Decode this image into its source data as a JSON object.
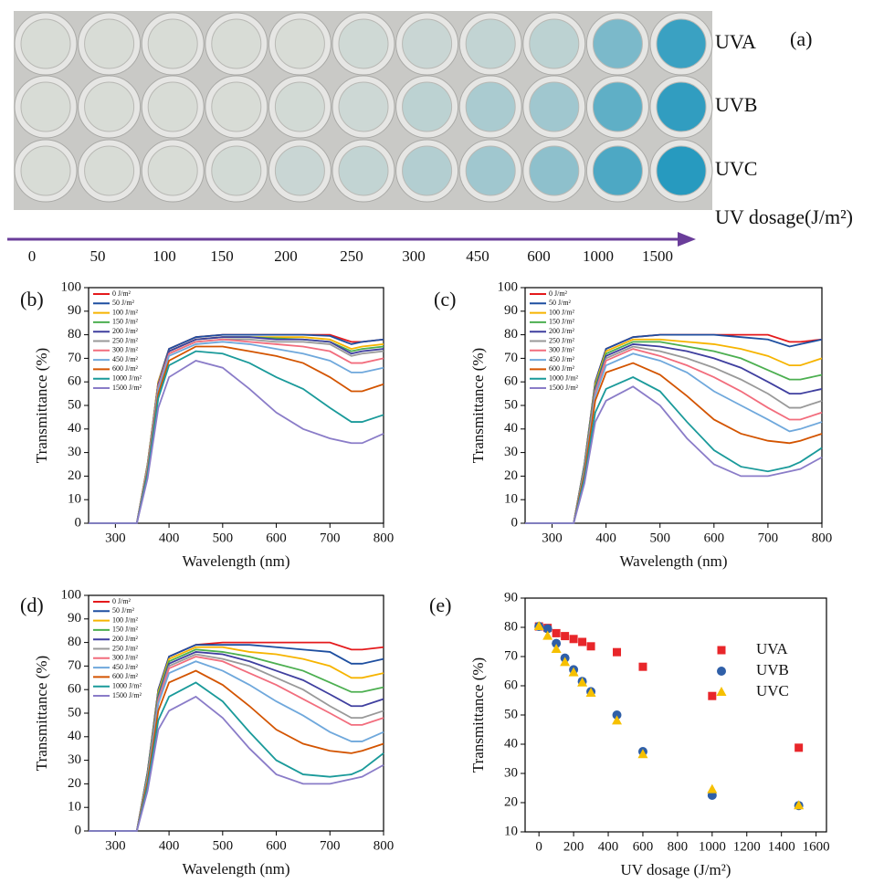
{
  "photo_panel": {
    "label": "(a)",
    "rows": [
      "UVA",
      "UVB",
      "UVC"
    ],
    "axis_title": "UV dosage(J/m²)",
    "dosages": [
      0,
      50,
      100,
      150,
      200,
      250,
      300,
      450,
      600,
      1000,
      1500
    ]
  },
  "chart_data": [
    {
      "type": "line",
      "panel_label": "(b)",
      "x_label": "Wavelength (nm)",
      "y_label": "Transmittance (%)",
      "legend": "upper left",
      "xlim": [
        250,
        800
      ],
      "ylim": [
        0,
        100
      ],
      "xticks": [
        300,
        400,
        500,
        600,
        700,
        800
      ],
      "yticks": [
        0,
        10,
        20,
        30,
        40,
        50,
        60,
        70,
        80,
        90,
        100
      ],
      "x": [
        250,
        300,
        340,
        360,
        380,
        400,
        450,
        500,
        550,
        600,
        650,
        700,
        740,
        760,
        800
      ],
      "series": [
        {
          "name": "0 J/m²",
          "color": "#e41a1c",
          "values": [
            0,
            0,
            0,
            25,
            60,
            74,
            79,
            80,
            80,
            80,
            80,
            80,
            77,
            77,
            78
          ]
        },
        {
          "name": "50 J/m²",
          "color": "#1e4fa0",
          "values": [
            0,
            0,
            0,
            25,
            60,
            74,
            79,
            80,
            80,
            80,
            80,
            79.5,
            76,
            77,
            78
          ]
        },
        {
          "name": "100 J/m²",
          "color": "#f6b400",
          "values": [
            0,
            0,
            0,
            25,
            60,
            73,
            78,
            79,
            79,
            79,
            79,
            78,
            74,
            75,
            76
          ]
        },
        {
          "name": "150 J/m²",
          "color": "#4caf50",
          "values": [
            0,
            0,
            0,
            25,
            59,
            73,
            78,
            79,
            79,
            78.5,
            78,
            77,
            73,
            74,
            75
          ]
        },
        {
          "name": "200 J/m²",
          "color": "#3f3f9f",
          "values": [
            0,
            0,
            0,
            24,
            59,
            73,
            78,
            79,
            79,
            78,
            78,
            77,
            72,
            73,
            74
          ]
        },
        {
          "name": "250 J/m²",
          "color": "#999999",
          "values": [
            0,
            0,
            0,
            24,
            58,
            72,
            77,
            78,
            78,
            77,
            77,
            76,
            71,
            72,
            73
          ]
        },
        {
          "name": "300 J/m²",
          "color": "#f26d7d",
          "values": [
            0,
            0,
            0,
            24,
            58,
            72,
            77,
            78,
            77,
            76,
            75,
            73,
            68,
            68,
            70
          ]
        },
        {
          "name": "450 J/m²",
          "color": "#6fa8dc",
          "values": [
            0,
            0,
            0,
            23,
            57,
            71,
            76,
            77,
            76,
            74,
            72,
            69,
            64,
            64,
            66
          ]
        },
        {
          "name": "600 J/m²",
          "color": "#d35400",
          "values": [
            0,
            0,
            0,
            22,
            55,
            69,
            75,
            75,
            73,
            71,
            68,
            62,
            56,
            56,
            59
          ]
        },
        {
          "name": "1000 J/m²",
          "color": "#1a9a9a",
          "values": [
            0,
            0,
            0,
            21,
            53,
            67,
            73,
            72,
            68,
            62,
            57,
            49,
            43,
            43,
            46
          ]
        },
        {
          "name": "1500 J/m²",
          "color": "#8a7cc8",
          "values": [
            0,
            0,
            0,
            19,
            49,
            62,
            69,
            66,
            57,
            47,
            40,
            36,
            34,
            34,
            38
          ]
        }
      ]
    },
    {
      "type": "line",
      "panel_label": "(c)",
      "x_label": "Wavelength (nm)",
      "y_label": "Transmittance (%)",
      "legend": "upper left",
      "xlim": [
        250,
        800
      ],
      "ylim": [
        0,
        100
      ],
      "xticks": [
        300,
        400,
        500,
        600,
        700,
        800
      ],
      "yticks": [
        0,
        10,
        20,
        30,
        40,
        50,
        60,
        70,
        80,
        90,
        100
      ],
      "x": [
        250,
        300,
        340,
        360,
        380,
        400,
        450,
        500,
        550,
        600,
        650,
        700,
        740,
        760,
        800
      ],
      "series": [
        {
          "name": "0 J/m²",
          "color": "#e41a1c",
          "values": [
            0,
            0,
            0,
            25,
            60,
            74,
            79,
            80,
            80,
            80,
            80,
            80,
            77,
            77,
            78
          ]
        },
        {
          "name": "50 J/m²",
          "color": "#1e4fa0",
          "values": [
            0,
            0,
            0,
            25,
            60,
            74,
            79,
            80,
            80,
            80,
            79,
            78,
            75,
            76,
            78
          ]
        },
        {
          "name": "100 J/m²",
          "color": "#f6b400",
          "values": [
            0,
            0,
            0,
            24,
            59,
            73,
            78,
            78,
            77,
            76,
            74,
            71,
            67,
            67,
            70
          ]
        },
        {
          "name": "150 J/m²",
          "color": "#4caf50",
          "values": [
            0,
            0,
            0,
            24,
            58,
            72,
            77,
            77,
            75,
            73,
            70,
            65,
            61,
            61,
            63
          ]
        },
        {
          "name": "200 J/m²",
          "color": "#3f3f9f",
          "values": [
            0,
            0,
            0,
            23,
            57,
            71,
            76,
            75,
            73,
            70,
            66,
            60,
            55,
            55,
            57
          ]
        },
        {
          "name": "250 J/m²",
          "color": "#999999",
          "values": [
            0,
            0,
            0,
            23,
            56,
            70,
            75,
            73,
            70,
            66,
            61,
            55,
            49,
            49,
            52
          ]
        },
        {
          "name": "300 J/m²",
          "color": "#f26d7d",
          "values": [
            0,
            0,
            0,
            22,
            55,
            69,
            74,
            71,
            67,
            62,
            56,
            49,
            44,
            44,
            47
          ]
        },
        {
          "name": "450 J/m²",
          "color": "#6fa8dc",
          "values": [
            0,
            0,
            0,
            22,
            54,
            67,
            72,
            69,
            64,
            56,
            50,
            44,
            39,
            40,
            43
          ]
        },
        {
          "name": "600 J/m²",
          "color": "#d35400",
          "values": [
            0,
            0,
            0,
            21,
            52,
            64,
            68,
            63,
            54,
            44,
            38,
            35,
            34,
            35,
            38
          ]
        },
        {
          "name": "1000 J/m²",
          "color": "#1a9a9a",
          "values": [
            0,
            0,
            0,
            19,
            47,
            57,
            62,
            56,
            43,
            31,
            24,
            22,
            24,
            26,
            32
          ]
        },
        {
          "name": "1500 J/m²",
          "color": "#8a7cc8",
          "values": [
            0,
            0,
            0,
            17,
            43,
            52,
            58,
            50,
            36,
            25,
            20,
            20,
            22,
            23,
            28
          ]
        }
      ]
    },
    {
      "type": "line",
      "panel_label": "(d)",
      "x_label": "Wavelength (nm)",
      "y_label": "Transmittance (%)",
      "legend": "upper left",
      "xlim": [
        250,
        800
      ],
      "ylim": [
        0,
        100
      ],
      "xticks": [
        300,
        400,
        500,
        600,
        700,
        800
      ],
      "yticks": [
        0,
        10,
        20,
        30,
        40,
        50,
        60,
        70,
        80,
        90,
        100
      ],
      "x": [
        250,
        300,
        340,
        360,
        380,
        400,
        450,
        500,
        550,
        600,
        650,
        700,
        740,
        760,
        800
      ],
      "series": [
        {
          "name": "0 J/m²",
          "color": "#e41a1c",
          "values": [
            0,
            0,
            0,
            25,
            60,
            74,
            79,
            80,
            80,
            80,
            80,
            80,
            77,
            77,
            78
          ]
        },
        {
          "name": "50 J/m²",
          "color": "#1e4fa0",
          "values": [
            0,
            0,
            0,
            25,
            60,
            74,
            79,
            79,
            79,
            78,
            77,
            76,
            71,
            71,
            73
          ]
        },
        {
          "name": "100 J/m²",
          "color": "#f6b400",
          "values": [
            0,
            0,
            0,
            24,
            59,
            73,
            78,
            78,
            76,
            75,
            73,
            70,
            65,
            65,
            67
          ]
        },
        {
          "name": "150 J/m²",
          "color": "#4caf50",
          "values": [
            0,
            0,
            0,
            24,
            58,
            72,
            77,
            76,
            74,
            71,
            68,
            63,
            59,
            59,
            61
          ]
        },
        {
          "name": "200 J/m²",
          "color": "#3f3f9f",
          "values": [
            0,
            0,
            0,
            23,
            57,
            71,
            76,
            75,
            72,
            68,
            64,
            58,
            53,
            53,
            56
          ]
        },
        {
          "name": "250 J/m²",
          "color": "#999999",
          "values": [
            0,
            0,
            0,
            23,
            56,
            70,
            75,
            73,
            70,
            65,
            60,
            53,
            48,
            48,
            51
          ]
        },
        {
          "name": "300 J/m²",
          "color": "#f26d7d",
          "values": [
            0,
            0,
            0,
            22,
            55,
            69,
            74,
            72,
            67,
            62,
            56,
            50,
            45,
            45,
            48
          ]
        },
        {
          "name": "450 J/m²",
          "color": "#6fa8dc",
          "values": [
            0,
            0,
            0,
            22,
            54,
            67,
            72,
            68,
            62,
            55,
            49,
            42,
            38,
            38,
            42
          ]
        },
        {
          "name": "600 J/m²",
          "color": "#d35400",
          "values": [
            0,
            0,
            0,
            21,
            51,
            63,
            68,
            62,
            53,
            43,
            37,
            34,
            33,
            34,
            37
          ]
        },
        {
          "name": "1000 J/m²",
          "color": "#1a9a9a",
          "values": [
            0,
            0,
            0,
            19,
            47,
            57,
            63,
            55,
            42,
            30,
            24,
            23,
            24,
            26,
            33
          ]
        },
        {
          "name": "1500 J/m²",
          "color": "#8a7cc8",
          "values": [
            0,
            0,
            0,
            17,
            43,
            51,
            57,
            48,
            35,
            24,
            20,
            20,
            22,
            23,
            28
          ]
        }
      ]
    },
    {
      "type": "scatter",
      "panel_label": "(e)",
      "x_label": "UV dosage (J/m²)",
      "y_label": "Transmittance (%)",
      "legend": "upper right",
      "xlim": [
        -80,
        1660
      ],
      "ylim": [
        10,
        90
      ],
      "xticks": [
        0,
        200,
        400,
        600,
        800,
        1000,
        1200,
        1400,
        1600
      ],
      "yticks": [
        10,
        20,
        30,
        40,
        50,
        60,
        70,
        80,
        90
      ],
      "x": [
        0,
        50,
        100,
        150,
        200,
        250,
        300,
        450,
        600,
        1000,
        1500
      ],
      "series": [
        {
          "name": "UVA",
          "color": "#e8262a",
          "marker": "square",
          "values": [
            80.3,
            79.8,
            78,
            77,
            76,
            75,
            73.5,
            71.5,
            66.5,
            56.5,
            38.8
          ]
        },
        {
          "name": "UVB",
          "color": "#2f5fa8",
          "marker": "circle",
          "values": [
            80.3,
            79.5,
            74.5,
            69.5,
            65.5,
            61.5,
            58,
            50,
            37.5,
            22.5,
            19
          ]
        },
        {
          "name": "UVC",
          "color": "#f6c000",
          "marker": "triangle",
          "values": [
            80.3,
            77,
            72.5,
            68,
            64.5,
            61,
            57.5,
            48,
            36.5,
            24.5,
            19
          ]
        }
      ]
    }
  ]
}
